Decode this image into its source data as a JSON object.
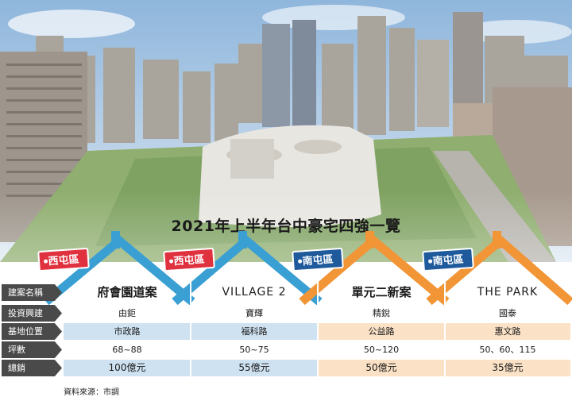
{
  "title": "2021年上半年台中豪宅四強一覽",
  "row_labels": [
    "建案名稱",
    "投資興建",
    "基地位置",
    "坪數",
    "總銷"
  ],
  "projects": [
    {
      "district": "西屯區",
      "name": "府會園道案",
      "developer": "由鉅",
      "location": "市政路",
      "size": "68~88",
      "total": "100億元",
      "theme": "blue"
    },
    {
      "district": "西屯區",
      "name": "VILLAGE 2",
      "developer": "寶輝",
      "location": "福科路",
      "size": "50~75",
      "total": "55億元",
      "theme": "blue"
    },
    {
      "district": "南屯區",
      "name": "單元二新案",
      "developer": "精銳",
      "location": "公益路",
      "size": "50~120",
      "total": "50億元",
      "theme": "orange"
    },
    {
      "district": "南屯區",
      "name": "THE PARK",
      "developer": "國泰",
      "location": "惠文路",
      "size": "50、60、115",
      "total": "35億元",
      "theme": "orange"
    }
  ],
  "source": "資料來源：市調",
  "colors": {
    "blue_roof": "#3a9fd3",
    "orange_roof": "#f19537",
    "red_tag": "#e0313f",
    "blue_tag": "#1f5a9c"
  }
}
